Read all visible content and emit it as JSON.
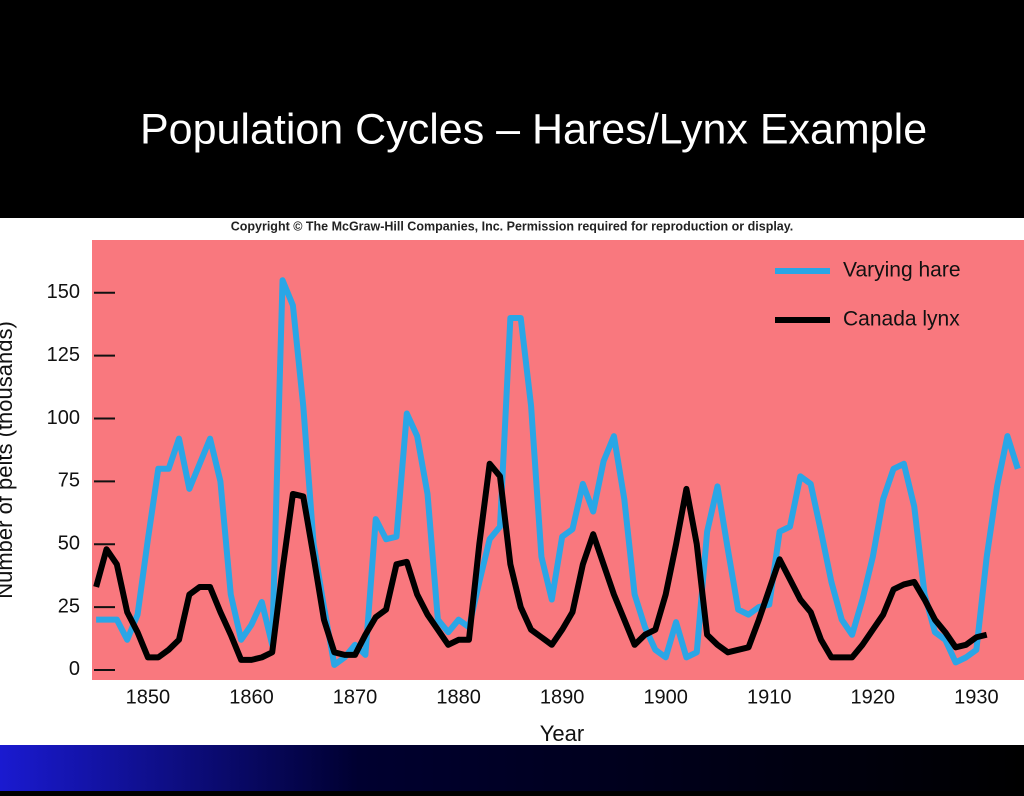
{
  "slide_title": "Population Cycles – Hares/Lynx Example",
  "copyright": "Copyright © The McGraw-Hill Companies, Inc. Permission required for reproduction or display.",
  "chart_data": {
    "type": "line",
    "xlabel": "Year",
    "ylabel": "Number of pelts (thousands)",
    "x": [
      1845,
      1846,
      1847,
      1848,
      1849,
      1850,
      1851,
      1852,
      1853,
      1854,
      1855,
      1856,
      1857,
      1858,
      1859,
      1860,
      1861,
      1862,
      1863,
      1864,
      1865,
      1866,
      1867,
      1868,
      1869,
      1870,
      1871,
      1872,
      1873,
      1874,
      1875,
      1876,
      1877,
      1878,
      1879,
      1880,
      1881,
      1882,
      1883,
      1884,
      1885,
      1886,
      1887,
      1888,
      1889,
      1890,
      1891,
      1892,
      1893,
      1894,
      1895,
      1896,
      1897,
      1898,
      1899,
      1900,
      1901,
      1902,
      1903,
      1904,
      1905,
      1906,
      1907,
      1908,
      1909,
      1910,
      1911,
      1912,
      1913,
      1914,
      1915,
      1916,
      1917,
      1918,
      1919,
      1920,
      1921,
      1922,
      1923,
      1924,
      1925,
      1926,
      1927,
      1928,
      1929,
      1930,
      1931,
      1932,
      1933,
      1934
    ],
    "series": [
      {
        "name": "Varying hare",
        "color": "#2aa6e6",
        "values": [
          20,
          20,
          20,
          12,
          22,
          52,
          80,
          80,
          92,
          72,
          82,
          92,
          75,
          30,
          12,
          18,
          27,
          10,
          155,
          145,
          105,
          50,
          25,
          2,
          5,
          10,
          6,
          60,
          52,
          53,
          102,
          93,
          70,
          20,
          15,
          20,
          17,
          35,
          52,
          57,
          140,
          140,
          105,
          45,
          28,
          53,
          56,
          74,
          63,
          83,
          93,
          68,
          30,
          17,
          8,
          5,
          19,
          5,
          7,
          55,
          73,
          48,
          24,
          22,
          25,
          26,
          55,
          57,
          77,
          74,
          55,
          35,
          20,
          14,
          28,
          45,
          68,
          80,
          82,
          65,
          30,
          15,
          12,
          3,
          5,
          8,
          45,
          73,
          93,
          80
        ]
      },
      {
        "name": "Canada lynx",
        "color": "#000000",
        "values": [
          33,
          48,
          42,
          23,
          15,
          5,
          5,
          8,
          12,
          30,
          33,
          33,
          23,
          14,
          4,
          4,
          5,
          7,
          40,
          70,
          69,
          45,
          20,
          7,
          6,
          6,
          14,
          21,
          24,
          42,
          43,
          30,
          22,
          16,
          10,
          12,
          12,
          50,
          82,
          77,
          42,
          25,
          16,
          13,
          10,
          16,
          23,
          42,
          54,
          42,
          30,
          20,
          10,
          14,
          16,
          30,
          50,
          72,
          50,
          14,
          10,
          7,
          8,
          9,
          20,
          32,
          44,
          36,
          28,
          23,
          12,
          5,
          5,
          5,
          10,
          16,
          22,
          32,
          34,
          35,
          28,
          20,
          15,
          9,
          10,
          13,
          14,
          null,
          null,
          null
        ]
      }
    ],
    "xlim": [
      1844.6,
      1934.6
    ],
    "xticks": [
      1850,
      1860,
      1870,
      1880,
      1890,
      1900,
      1910,
      1920,
      1930
    ],
    "ylim": [
      -4,
      171
    ],
    "yticks": [
      0,
      25,
      50,
      75,
      100,
      125,
      150
    ]
  }
}
